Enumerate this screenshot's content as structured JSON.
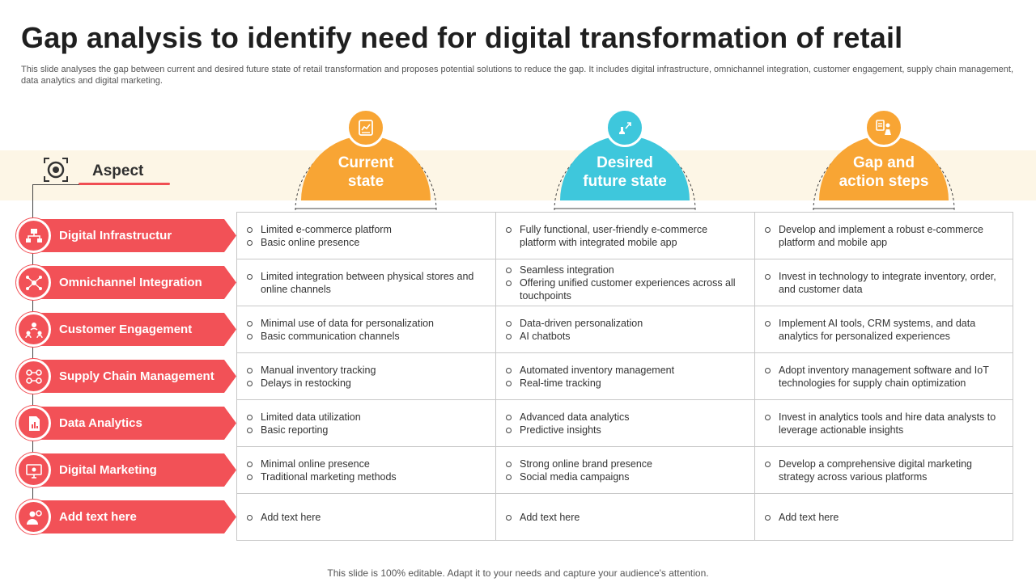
{
  "title": "Gap analysis to identify need for digital transformation of retail",
  "subtitle": "This slide analyses the gap between current and desired future state of retail transformation and proposes potential solutions to reduce the gap. It includes digital infrastructure, omnichannel integration, customer engagement, supply chain management, data analytics and digital marketing.",
  "aspect_label": "Aspect",
  "columns": [
    {
      "line1": "Current",
      "line2": "state",
      "color": "#f8a534",
      "icon": "chart-report-icon"
    },
    {
      "line1": "Desired",
      "line2": "future state",
      "color": "#3ec7dc",
      "icon": "chess-growth-icon"
    },
    {
      "line1": "Gap and",
      "line2": "action steps",
      "color": "#f8a534",
      "icon": "checklist-person-icon"
    }
  ],
  "rows": [
    {
      "label": "Digital Infrastructur",
      "icon": "network-icon",
      "cells": [
        [
          "Limited e-commerce platform",
          "Basic online presence"
        ],
        [
          "Fully functional, user-friendly e-commerce platform with integrated mobile app"
        ],
        [
          "Develop and implement a robust e-commerce platform and mobile app"
        ]
      ]
    },
    {
      "label": "Omnichannel Integration",
      "icon": "hub-icon",
      "cells": [
        [
          "Limited integration between physical stores and online channels"
        ],
        [
          "Seamless integration",
          "Offering unified customer experiences across all touchpoints"
        ],
        [
          "Invest in technology to integrate inventory, order, and customer data"
        ]
      ]
    },
    {
      "label": "Customer Engagement",
      "icon": "customers-icon",
      "cells": [
        [
          "Minimal use of data for personalization",
          "Basic communication channels"
        ],
        [
          "Data-driven personalization",
          "AI chatbots"
        ],
        [
          "Implement AI tools, CRM systems, and data analytics for personalized experiences"
        ]
      ]
    },
    {
      "label": "Supply Chain Management",
      "icon": "supply-chain-icon",
      "cells": [
        [
          "Manual inventory tracking",
          "Delays in restocking"
        ],
        [
          "Automated inventory management",
          "Real-time tracking"
        ],
        [
          "Adopt inventory management software and IoT technologies for supply chain optimization"
        ]
      ]
    },
    {
      "label": "Data Analytics",
      "icon": "document-chart-icon",
      "cells": [
        [
          "Limited data utilization",
          "Basic reporting"
        ],
        [
          "Advanced data analytics",
          "Predictive insights"
        ],
        [
          "Invest in analytics tools and hire data analysts to leverage actionable insights"
        ]
      ]
    },
    {
      "label": "Digital Marketing",
      "icon": "monitor-icon",
      "cells": [
        [
          "Minimal online presence",
          "Traditional marketing methods"
        ],
        [
          "Strong online brand presence",
          "Social media campaigns"
        ],
        [
          "Develop a comprehensive digital marketing strategy across various platforms"
        ]
      ]
    },
    {
      "label": "Add text here",
      "icon": "person-gear-icon",
      "cells": [
        [
          "Add text here"
        ],
        [
          "Add text here"
        ],
        [
          "Add text here"
        ]
      ]
    }
  ],
  "footer": "This slide is 100% editable. Adapt it to your needs and capture your audience's attention."
}
